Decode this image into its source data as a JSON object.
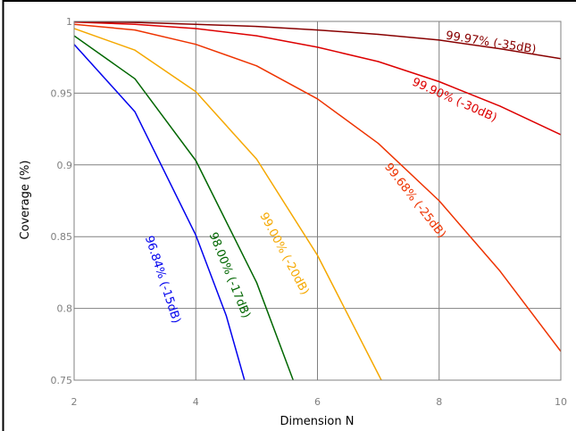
{
  "chart_data": {
    "type": "line",
    "title": "",
    "xlabel": "Dimension N",
    "ylabel": "Coverage (%)",
    "xlim": [
      2,
      10
    ],
    "ylim": [
      0.75,
      1
    ],
    "xticks": [
      2,
      4,
      6,
      8,
      10
    ],
    "yticks": [
      0.75,
      0.8,
      0.85,
      0.9,
      0.95,
      1
    ],
    "ytick_labels": [
      "0.75",
      "0.8",
      "0.85",
      "0.9",
      "0.95",
      "1"
    ],
    "xtick_labels": [
      "2",
      "4",
      "6",
      "8",
      "10"
    ],
    "grid": true,
    "series": [
      {
        "name": "96.84% (-15dB)",
        "color": "#0000ee",
        "x": [
          2,
          3,
          4,
          4.5,
          4.8
        ],
        "y": [
          0.984,
          0.937,
          0.851,
          0.795,
          0.75
        ],
        "label_at": [
          3.45,
          0.82
        ],
        "label_angle": 72
      },
      {
        "name": "98.00% (-17dB)",
        "color": "#006600",
        "x": [
          2,
          3,
          4,
          5,
          5.6
        ],
        "y": [
          0.99,
          0.96,
          0.903,
          0.818,
          0.75
        ],
        "label_at": [
          4.55,
          0.823
        ],
        "label_angle": 68
      },
      {
        "name": "99.00% (-20dB)",
        "color": "#f5a800",
        "x": [
          2,
          3,
          4,
          5,
          6,
          7.05
        ],
        "y": [
          0.995,
          0.98,
          0.951,
          0.904,
          0.837,
          0.75
        ],
        "label_at": [
          5.45,
          0.838
        ],
        "label_angle": 62
      },
      {
        "name": "99.68% (-25dB)",
        "color": "#ee3300",
        "x": [
          2,
          3,
          4,
          5,
          6,
          7,
          8,
          9,
          10
        ],
        "y": [
          0.998,
          0.994,
          0.984,
          0.969,
          0.946,
          0.915,
          0.875,
          0.826,
          0.77
        ],
        "label_at": [
          7.6,
          0.875
        ],
        "label_angle": 52
      },
      {
        "name": "99.90% (-30dB)",
        "color": "#dd0000",
        "x": [
          2,
          3,
          4,
          5,
          6,
          7,
          8,
          9,
          10
        ],
        "y": [
          0.9995,
          0.998,
          0.995,
          0.99,
          0.982,
          0.972,
          0.958,
          0.941,
          0.921
        ],
        "label_at": [
          8.25,
          0.945
        ],
        "label_angle": 24
      },
      {
        "name": "99.97% (-35dB)",
        "color": "#880000",
        "x": [
          2,
          3,
          4,
          5,
          6,
          7,
          8,
          9,
          10
        ],
        "y": [
          0.9998,
          0.9993,
          0.998,
          0.9965,
          0.994,
          0.991,
          0.987,
          0.981,
          0.974
        ],
        "label_at": [
          8.85,
          0.985
        ],
        "label_angle": 9
      }
    ]
  }
}
